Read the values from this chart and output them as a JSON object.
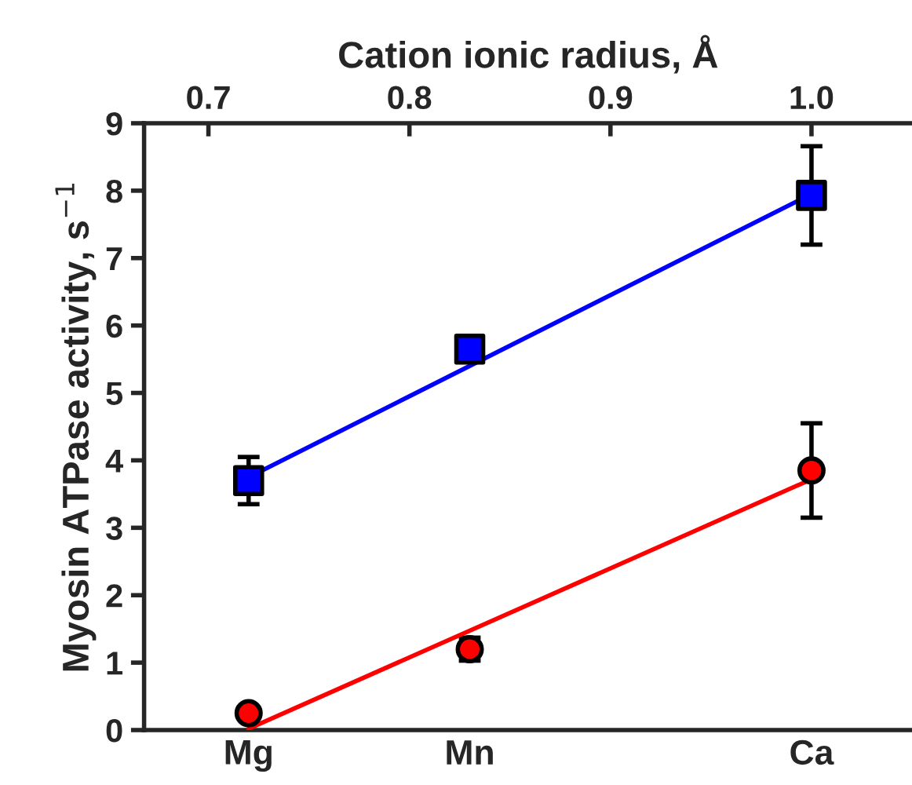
{
  "chart_data": {
    "type": "scatter",
    "xlabel": "Cation ionic radius, Å",
    "ylabel": "Myosin ATPase activity, s$^{−1}$",
    "xlim": [
      0.668,
      1.05
    ],
    "xticks": [
      0.7,
      0.8,
      0.9,
      {
        "value": 1.0,
        "label": "1.0"
      }
    ],
    "ylim": [
      0,
      9
    ],
    "yticks": [
      0,
      1,
      2,
      3,
      4,
      5,
      6,
      7,
      8,
      9
    ],
    "grid": false,
    "legend": false,
    "annotations": [
      "Mg",
      "Mn",
      "Ca"
    ],
    "series": [
      {
        "color": "#0000ff",
        "marker": "square",
        "x": [
          0.72,
          0.83,
          1.0
        ],
        "values": [
          3.7,
          5.65,
          7.93
        ],
        "errors": [
          0.35,
          0.15,
          0.73
        ]
      },
      {
        "color": "#ff0000",
        "marker": "circle",
        "x": [
          0.72,
          0.83,
          1.0
        ],
        "values": [
          0.25,
          1.2,
          3.85
        ],
        "errors": [
          null,
          0.17,
          0.7
        ]
      },
      {
        "type": "line",
        "color": "#0000ff",
        "x": [
          0.72,
          1.0
        ],
        "values": [
          3.75,
          7.95
        ]
      },
      {
        "type": "line",
        "color": "#ff0000",
        "x": [
          0.72,
          1.0
        ],
        "values": [
          0.02,
          3.72
        ]
      }
    ]
  }
}
